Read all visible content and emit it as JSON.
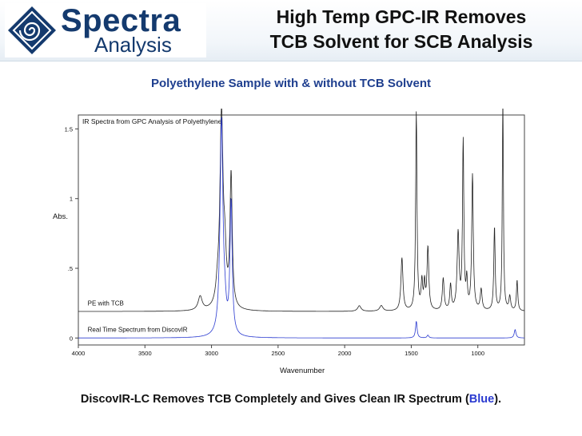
{
  "header": {
    "logo": {
      "word1": "Spectra",
      "word2": "Analysis",
      "color": "#143a6e"
    },
    "title_line1": "High Temp GPC-IR Removes",
    "title_line2": "TCB Solvent for SCB Analysis"
  },
  "subtitle": "Polyethylene Sample with & without TCB Solvent",
  "chart_data": {
    "type": "line",
    "title": "IR Spectra from GPC Analysis of Polyethylene",
    "xlabel": "Wavenumber",
    "ylabel": "Abs.",
    "xlim": [
      4000,
      650
    ],
    "ylim": [
      -0.05,
      1.6
    ],
    "x_reversed": true,
    "x_ticks": [
      4000,
      3500,
      3000,
      2500,
      2000,
      1500,
      1000
    ],
    "x_tick_labels": [
      "4000",
      "3500",
      "3000",
      "2500",
      "2000",
      "1500",
      "1000"
    ],
    "y_ticks": [
      0,
      0.5,
      1,
      1.5
    ],
    "y_tick_labels": [
      "0",
      ".5",
      "1",
      "1.5"
    ],
    "series": [
      {
        "name": "PE with TCB",
        "color": "#222222",
        "baseline": 0.19,
        "peaks": [
          [
            3085,
            0.1,
            18
          ],
          [
            2955,
            0.1,
            15
          ],
          [
            2925,
            1.38,
            14
          ],
          [
            2900,
            0.3,
            12
          ],
          [
            2853,
            0.95,
            10
          ],
          [
            1890,
            0.04,
            15
          ],
          [
            1725,
            0.04,
            15
          ],
          [
            1570,
            0.38,
            9
          ],
          [
            1462,
            1.42,
            6
          ],
          [
            1420,
            0.2,
            7
          ],
          [
            1400,
            0.18,
            6
          ],
          [
            1375,
            0.45,
            8
          ],
          [
            1260,
            0.23,
            8
          ],
          [
            1205,
            0.18,
            7
          ],
          [
            1148,
            0.55,
            9
          ],
          [
            1110,
            1.2,
            6
          ],
          [
            1083,
            0.2,
            6
          ],
          [
            1040,
            0.97,
            7
          ],
          [
            975,
            0.15,
            8
          ],
          [
            875,
            0.6,
            6
          ],
          [
            812,
            1.52,
            5
          ],
          [
            760,
            0.1,
            8
          ],
          [
            705,
            0.22,
            6
          ]
        ]
      },
      {
        "name": "Real Time Spectrum from DiscovIR",
        "color": "#2a3ad0",
        "baseline": 0.0,
        "peaks": [
          [
            2925,
            1.55,
            13
          ],
          [
            2900,
            0.12,
            12
          ],
          [
            2853,
            0.95,
            10
          ],
          [
            1462,
            0.12,
            7
          ],
          [
            1375,
            0.02,
            8
          ],
          [
            720,
            0.06,
            8
          ]
        ]
      }
    ],
    "annotations": [
      {
        "text": "PE with TCB",
        "x": 3930,
        "y": 0.235
      },
      {
        "text": "Real Time Spectrum from DiscovIR",
        "x": 3930,
        "y": 0.045
      }
    ]
  },
  "caption": {
    "before": "DiscovIR-LC Removes TCB Completely and Gives Clean IR Spectrum (",
    "highlight": "Blue",
    "after": ").",
    "highlight_color": "#2a3ad0"
  }
}
